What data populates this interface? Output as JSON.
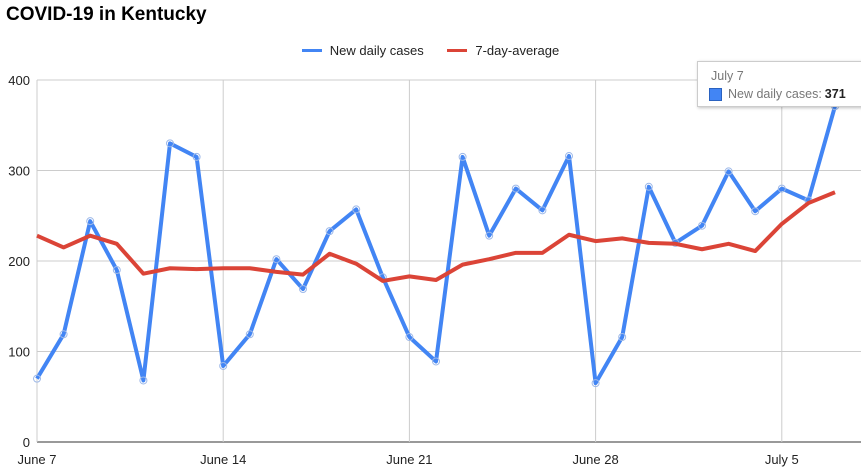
{
  "chart_data": {
    "type": "line",
    "title": "COVID-19 in Kentucky",
    "xlabel": "",
    "ylabel": "",
    "x_tick_labels": [
      {
        "index": 0,
        "label": "June 7"
      },
      {
        "index": 7,
        "label": "June 14"
      },
      {
        "index": 14,
        "label": "June 21"
      },
      {
        "index": 21,
        "label": "June 28"
      },
      {
        "index": 28,
        "label": "July 5"
      }
    ],
    "y_ticks": [
      0,
      100,
      200,
      300,
      400
    ],
    "ylim": [
      0,
      400
    ],
    "xlim": [
      0,
      30
    ],
    "grid": true,
    "legend_position": "top",
    "series": [
      {
        "name": "New daily cases",
        "color": "#4285f4",
        "values": [
          70,
          119,
          244,
          190,
          68,
          330,
          315,
          84,
          119,
          202,
          169,
          233,
          257,
          182,
          116,
          89,
          315,
          228,
          280,
          256,
          316,
          65,
          116,
          282,
          220,
          239,
          299,
          255,
          280,
          267,
          371
        ]
      },
      {
        "name": "7-day-average",
        "color": "#db4437",
        "values": [
          228,
          215,
          228,
          219,
          186,
          192,
          191,
          192,
          192,
          188,
          185,
          208,
          197,
          178,
          183,
          179,
          196,
          202,
          209,
          209,
          229,
          222,
          225,
          220,
          219,
          213,
          219,
          211,
          241,
          264,
          276
        ]
      }
    ]
  },
  "tooltip": {
    "date": "July 7",
    "label": "New daily cases:",
    "value": "371"
  }
}
